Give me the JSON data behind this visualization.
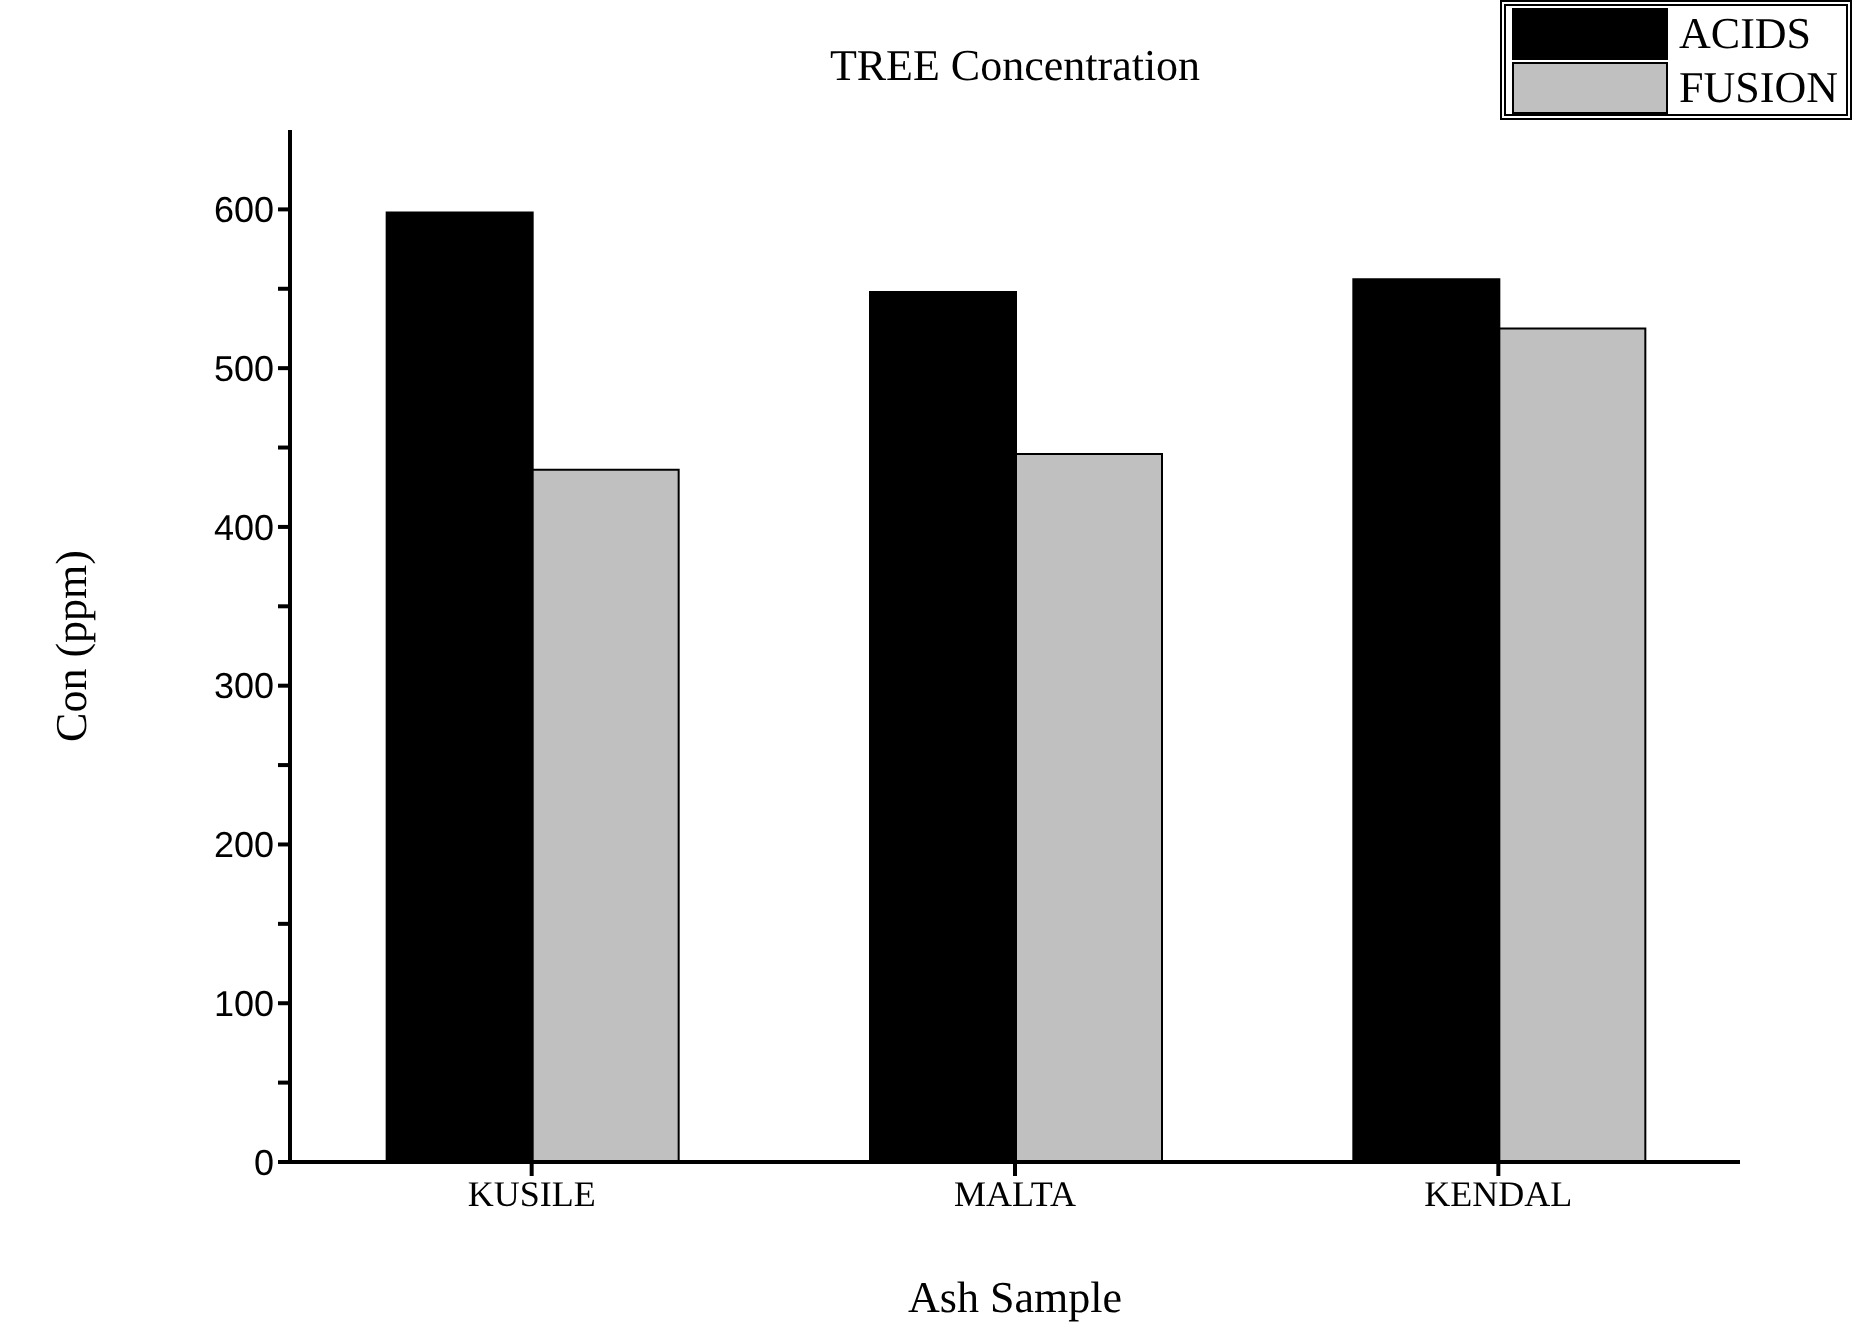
{
  "chart_data": {
    "type": "bar",
    "title": "TREE Concentration",
    "xlabel": "Ash Sample",
    "ylabel": "Con (ppm)",
    "categories": [
      "KUSILE",
      "MALTA",
      "KENDAL"
    ],
    "series": [
      {
        "name": "ACIDS",
        "color": "#000000",
        "values": [
          598,
          548,
          556
        ]
      },
      {
        "name": "FUSION",
        "color": "#c0c0c0",
        "values": [
          436,
          446,
          525
        ]
      }
    ],
    "ylim": [
      0,
      650
    ],
    "yticks": [
      0,
      {
        "value": 50,
        "label": null
      },
      100,
      {
        "value": 150,
        "label": null
      },
      200,
      {
        "value": 250,
        "label": null
      },
      300,
      {
        "value": 350,
        "label": null
      },
      400,
      {
        "value": 450,
        "label": null
      },
      500,
      {
        "value": 550,
        "label": null
      },
      600
    ],
    "grid": false,
    "legend": "top right"
  }
}
